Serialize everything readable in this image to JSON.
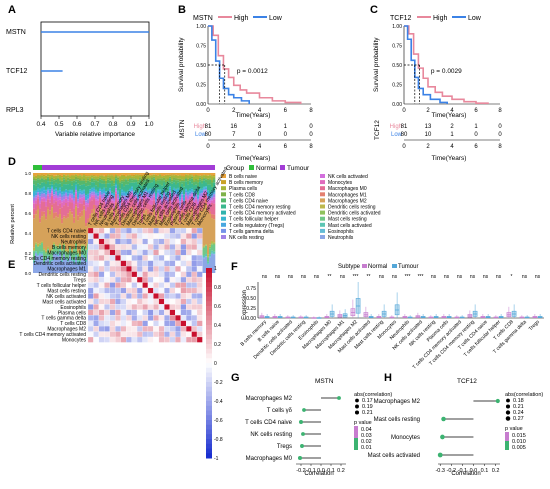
{
  "colors": {
    "high": "#e8889c",
    "low": "#3b82e6",
    "normal": "#2fbf3a",
    "tumour": "#a23cd6",
    "pos": "#c8102e",
    "neg": "#1a2fd0",
    "lolli": "#3cb371"
  },
  "panels": {
    "A": {
      "label": "A",
      "genes": [
        "MSTN",
        "TCF12",
        "RPL3"
      ],
      "xticks": [
        "0.4",
        "0.5",
        "0.6",
        "0.7",
        "0.8",
        "0.9",
        "1.0"
      ],
      "xlabel": "Variable relative importance",
      "importance": [
        1.0,
        0.52,
        0.4
      ],
      "xlim": [
        0.4,
        1.0
      ]
    },
    "B": {
      "label": "B",
      "title": "MSTN",
      "legend": [
        "High",
        "Low"
      ],
      "pvalue": "p = 0.0012",
      "ylabel": "Survival probability",
      "xlabel": "Time(Years)",
      "yticks": [
        "0.00",
        "0.25",
        "0.50",
        "0.75",
        "1.00"
      ],
      "xticks": [
        "0",
        "2",
        "4",
        "6",
        "8"
      ],
      "risk_ylabel": "MSTN",
      "risk_rows": [
        {
          "name": "High",
          "values": [
            "81",
            "16",
            "3",
            "1",
            "0"
          ]
        },
        {
          "name": "Low",
          "values": [
            "80",
            "7",
            "0",
            "0",
            "0"
          ]
        }
      ],
      "curves": {
        "High": [
          [
            0,
            1.0
          ],
          [
            0.4,
            0.88
          ],
          [
            0.8,
            0.62
          ],
          [
            1.2,
            0.45
          ],
          [
            1.6,
            0.34
          ],
          [
            2.0,
            0.24
          ],
          [
            2.5,
            0.18
          ],
          [
            3,
            0.14
          ],
          [
            4,
            0.08
          ],
          [
            5,
            0.04
          ],
          [
            6,
            0.02
          ],
          [
            7.2,
            0.0
          ]
        ],
        "Low": [
          [
            0,
            1.0
          ],
          [
            0.3,
            0.82
          ],
          [
            0.6,
            0.55
          ],
          [
            0.9,
            0.33
          ],
          [
            1.2,
            0.2
          ],
          [
            1.6,
            0.12
          ],
          [
            2.0,
            0.08
          ],
          [
            2.6,
            0.04
          ],
          [
            3.2,
            0.0
          ]
        ]
      },
      "medians": [
        0.9,
        1.3
      ]
    },
    "C": {
      "label": "C",
      "title": "TCF12",
      "legend": [
        "High",
        "Low"
      ],
      "pvalue": "p = 0.0029",
      "ylabel": "Survival probability",
      "xlabel": "Time(Years)",
      "yticks": [
        "0.00",
        "0.25",
        "0.50",
        "0.75",
        "1.00"
      ],
      "xticks": [
        "0",
        "2",
        "4",
        "6",
        "8"
      ],
      "risk_ylabel": "TCF12",
      "risk_rows": [
        {
          "name": "High",
          "values": [
            "81",
            "13",
            "2",
            "1",
            "0"
          ]
        },
        {
          "name": "Low",
          "values": [
            "80",
            "10",
            "1",
            "0",
            "0"
          ]
        }
      ],
      "curves": {
        "High": [
          [
            0,
            1.0
          ],
          [
            0.4,
            0.9
          ],
          [
            0.8,
            0.64
          ],
          [
            1.2,
            0.46
          ],
          [
            1.6,
            0.33
          ],
          [
            2.0,
            0.22
          ],
          [
            2.6,
            0.15
          ],
          [
            3.2,
            0.1
          ],
          [
            4,
            0.06
          ],
          [
            5,
            0.03
          ],
          [
            6,
            0.01
          ],
          [
            7,
            0.0
          ]
        ],
        "Low": [
          [
            0,
            1.0
          ],
          [
            0.3,
            0.83
          ],
          [
            0.6,
            0.56
          ],
          [
            0.9,
            0.34
          ],
          [
            1.2,
            0.2
          ],
          [
            1.6,
            0.12
          ],
          [
            2.2,
            0.06
          ],
          [
            3.0,
            0.02
          ],
          [
            3.6,
            0.0
          ]
        ]
      },
      "medians": [
        0.9,
        1.3
      ]
    },
    "D": {
      "label": "D",
      "group_title": "Group",
      "groups": [
        "Normal",
        "Tumour"
      ],
      "ylabel": "Relative percent",
      "yticks": [
        "0.0",
        "0.2",
        "0.4",
        "0.6",
        "0.8",
        "1.0"
      ],
      "legend_left": [
        "B cells naive",
        "B cells memory",
        "Plasma cells",
        "T cells CD8",
        "T cells CD4 naive",
        "T cells CD4 memory resting",
        "T cells CD4 memory activated",
        "T cells follicular helper",
        "T cells regulatory (Tregs)",
        "T cells gamma delta",
        "NK cells resting"
      ],
      "legend_right": [
        "NK cells activated",
        "Monocytes",
        "Macrophages M0",
        "Macrophages M1",
        "Macrophages M2",
        "Dendritic cells resting",
        "Dendritic cells activated",
        "Mast cells resting",
        "Mast cells activated",
        "Eosinophils",
        "Neutrophils"
      ],
      "cell_colors": [
        "#e8a33c",
        "#c9a227",
        "#a6b63a",
        "#7fb24a",
        "#56b86c",
        "#3cb88e",
        "#2fb3ae",
        "#37b6d0",
        "#48a7e0",
        "#7693e8",
        "#a283e6",
        "#d36fdd",
        "#e06bbd",
        "#e46d96",
        "#e48070",
        "#d6a25a",
        "#bdb84e",
        "#8fc25e",
        "#6fc888",
        "#5dc6b4",
        "#63bcd6",
        "#8ca7e6"
      ],
      "composition": [
        0.02,
        0.01,
        0.03,
        0.02,
        0.04,
        0.06,
        0.01,
        0.02,
        0.02,
        0.01,
        0.03,
        0.02,
        0.04,
        0.09,
        0.04,
        0.35,
        0.02,
        0.01,
        0.08,
        0.02,
        0.01,
        0.15
      ]
    },
    "E": {
      "label": "E",
      "cells": [
        "T cells CD4 naive",
        "NK cells resting",
        "Neutrophils",
        "B cells memory",
        "Macrophages M0",
        "T cells CD4 memory resting",
        "Dendritic cells activated",
        "Macrophages M1",
        "Dendritic cells resting",
        "Tregs",
        "T cells follicular helper",
        "Mast cells resting",
        "NK cells activated",
        "Mast cells activated",
        "Eosinophils",
        "Plasma cells",
        "T cells gamma delta",
        "T cells CD8",
        "Macrophages M2",
        "T cells CD4 memory activated",
        "Monocytes"
      ],
      "colorbar_ticks": [
        "1",
        "0.8",
        "0.6",
        "0.4",
        "0.2",
        "0",
        "-0.2",
        "-0.4",
        "-0.6",
        "-0.8",
        "-1"
      ]
    },
    "F": {
      "label": "F",
      "subtitle_label": "Subtype",
      "groups": [
        "Normal",
        "Tumour"
      ],
      "ylabel": "Expression",
      "yticks": [
        "0.00",
        "0.25",
        "0.50",
        "0.75"
      ],
      "significance": [
        "ns",
        "ns",
        "ns",
        "ns",
        "ns",
        "**",
        "ns",
        "***",
        "**",
        "ns",
        "ns",
        "***",
        "***",
        "ns",
        "ns",
        "ns",
        "ns",
        "ns",
        "ns",
        "*",
        "ns",
        "ns"
      ],
      "categories": [
        "B cells memory",
        "B cells naive",
        "Dendritic cells activated",
        "Dendritic cells resting",
        "Eosinophils",
        "Macrophages M0",
        "Macrophages M1",
        "Macrophages M2",
        "Mast cells activated",
        "Mast cells resting",
        "Monocytes",
        "Neutrophils",
        "NK cells activated",
        "NK cells resting",
        "Plasma cells",
        "T cells CD4 memory activated",
        "T cells CD4 memory resting",
        "T cells CD4 naive",
        "T cells follicular helper",
        "T cells CD8",
        "T cells gamma delta",
        "Tregs"
      ],
      "normal_medians": [
        0.03,
        0.02,
        0.01,
        0.01,
        0.0,
        0.02,
        0.05,
        0.14,
        0.08,
        0.02,
        0.01,
        0.02,
        0.03,
        0.01,
        0.02,
        0.01,
        0.05,
        0.02,
        0.01,
        0.08,
        0.01,
        0.02
      ],
      "tumour_medians": [
        0.02,
        0.02,
        0.01,
        0.01,
        0.0,
        0.1,
        0.06,
        0.3,
        0.02,
        0.1,
        0.2,
        0.01,
        0.02,
        0.02,
        0.02,
        0.01,
        0.1,
        0.02,
        0.02,
        0.1,
        0.01,
        0.02
      ]
    },
    "G": {
      "label": "G",
      "title": "MSTN",
      "xlabel": "Correlation",
      "xticks": [
        "-0.2",
        "-0.1",
        "0.0",
        "0.1",
        "0.2"
      ],
      "xlim": [
        -0.25,
        0.25
      ],
      "items": [
        {
          "name": "Macrophages M2",
          "corr": 0.18
        },
        {
          "name": "T cells γδ",
          "corr": -0.17
        },
        {
          "name": "T cells CD4 naive",
          "corr": -0.2
        },
        {
          "name": "NK cells resting",
          "corr": -0.18
        },
        {
          "name": "Tregs",
          "corr": -0.19
        },
        {
          "name": "Macrophages M0",
          "corr": -0.21
        }
      ],
      "size_title": "abs(correlation)",
      "size_labels": [
        "0.17",
        "0.19",
        "0.21"
      ],
      "p_title": "p value",
      "p_labels": [
        "0.04",
        "0.03",
        "0.02",
        "0.01"
      ]
    },
    "H": {
      "label": "H",
      "title": "TCF12",
      "xlabel": "Correlation",
      "xticks": [
        "-0.3",
        "-0.2",
        "-0.1",
        "0.0",
        "0.1",
        "0.2"
      ],
      "xlim": [
        -0.32,
        0.24
      ],
      "items": [
        {
          "name": "Macrophages M2",
          "corr": 0.22
        },
        {
          "name": "Mast cells resting",
          "corr": -0.27
        },
        {
          "name": "Monocytes",
          "corr": -0.28
        },
        {
          "name": "Mast cells activated",
          "corr": -0.3
        }
      ],
      "size_title": "abs(correlation)",
      "size_labels": [
        "0.18",
        "0.21",
        "0.24",
        "0.27"
      ],
      "p_title": "p value",
      "p_labels": [
        "0.015",
        "0.010",
        "0.005"
      ]
    }
  }
}
